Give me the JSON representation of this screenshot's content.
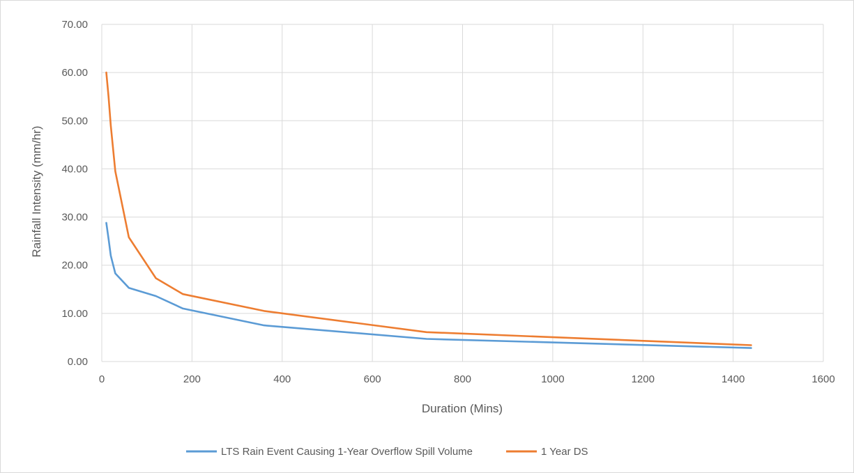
{
  "chart_data": {
    "type": "line",
    "title": "",
    "xlabel": "Duration (Mins)",
    "ylabel": "Rainfall Intensity (mm/hr)",
    "xlim": [
      0,
      1600
    ],
    "ylim": [
      0,
      70
    ],
    "x_ticks": [
      "0",
      "200",
      "400",
      "600",
      "800",
      "1000",
      "1200",
      "1400",
      "1600"
    ],
    "y_ticks": [
      "0.00",
      "10.00",
      "20.00",
      "30.00",
      "40.00",
      "50.00",
      "60.00",
      "70.00"
    ],
    "grid": true,
    "legend_position": "bottom",
    "series": [
      {
        "name": "LTS Rain Event Causing 1-Year Overflow Spill Volume",
        "color": "#5b9bd5",
        "x": [
          10,
          15,
          20,
          30,
          60,
          120,
          180,
          360,
          720,
          1440
        ],
        "y": [
          28.8,
          25.5,
          22.0,
          18.3,
          15.3,
          13.6,
          11.0,
          7.5,
          4.7,
          2.8
        ]
      },
      {
        "name": "1 Year DS",
        "color": "#ed7d31",
        "x": [
          10,
          15,
          20,
          30,
          60,
          120,
          180,
          360,
          720,
          1440
        ],
        "y": [
          60.0,
          55.0,
          49.0,
          39.5,
          25.8,
          17.3,
          14.0,
          10.5,
          6.1,
          3.4
        ]
      }
    ]
  }
}
